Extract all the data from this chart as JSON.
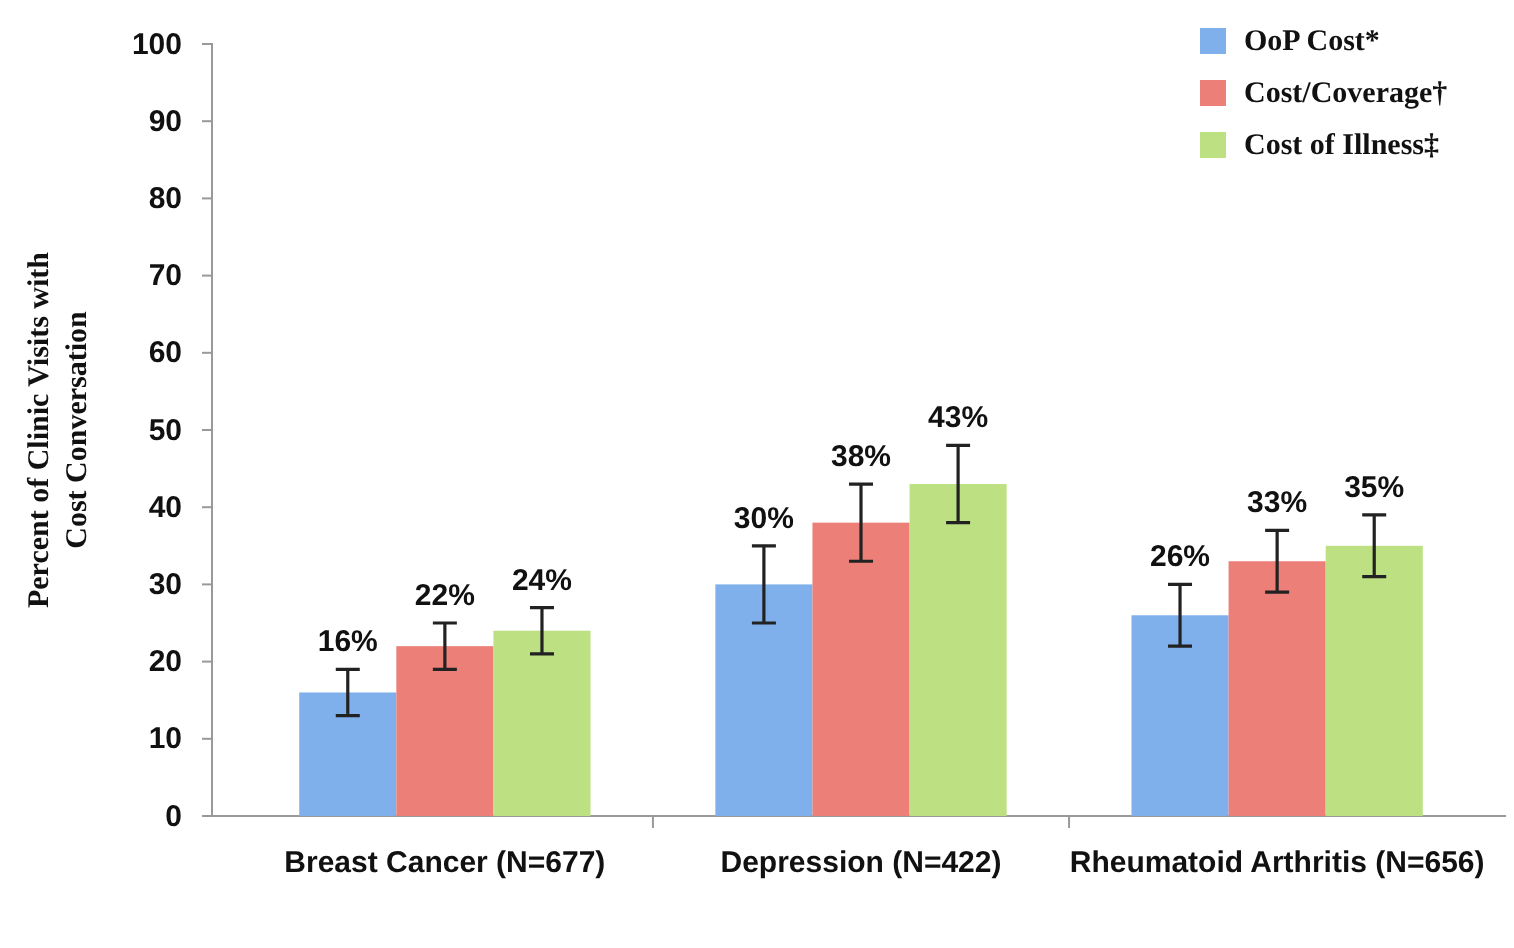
{
  "chart_data": {
    "type": "bar",
    "ylabel": "Percent of Clinic Visits with Cost Conversation",
    "categories": [
      "Breast Cancer (N=677)",
      "Depression (N=422)",
      "Rheumatoid Arthritis (N=656)"
    ],
    "series": [
      {
        "name": "OoP Cost*",
        "color": "#7fb0ec",
        "values": [
          16,
          30,
          26
        ],
        "errors": [
          [
            13,
            19
          ],
          [
            25,
            35
          ],
          [
            22,
            30
          ]
        ],
        "value_labels": [
          "16%",
          "30%",
          "26%"
        ]
      },
      {
        "name": "Cost/Coverage†",
        "color": "#ec7f78",
        "values": [
          22,
          38,
          33
        ],
        "errors": [
          [
            19,
            25
          ],
          [
            33,
            43
          ],
          [
            29,
            37
          ]
        ],
        "value_labels": [
          "22%",
          "38%",
          "33%"
        ]
      },
      {
        "name": "Cost of Illness‡",
        "color": "#bde083",
        "values": [
          24,
          43,
          35
        ],
        "errors": [
          [
            21,
            27
          ],
          [
            38,
            48
          ],
          [
            31,
            39
          ]
        ],
        "value_labels": [
          "24%",
          "43%",
          "35%"
        ]
      }
    ],
    "ylim": [
      0,
      100
    ],
    "yticks": [
      0,
      10,
      20,
      30,
      40,
      50,
      60,
      70,
      80,
      90,
      100
    ],
    "grid": false,
    "legend": "top right"
  }
}
